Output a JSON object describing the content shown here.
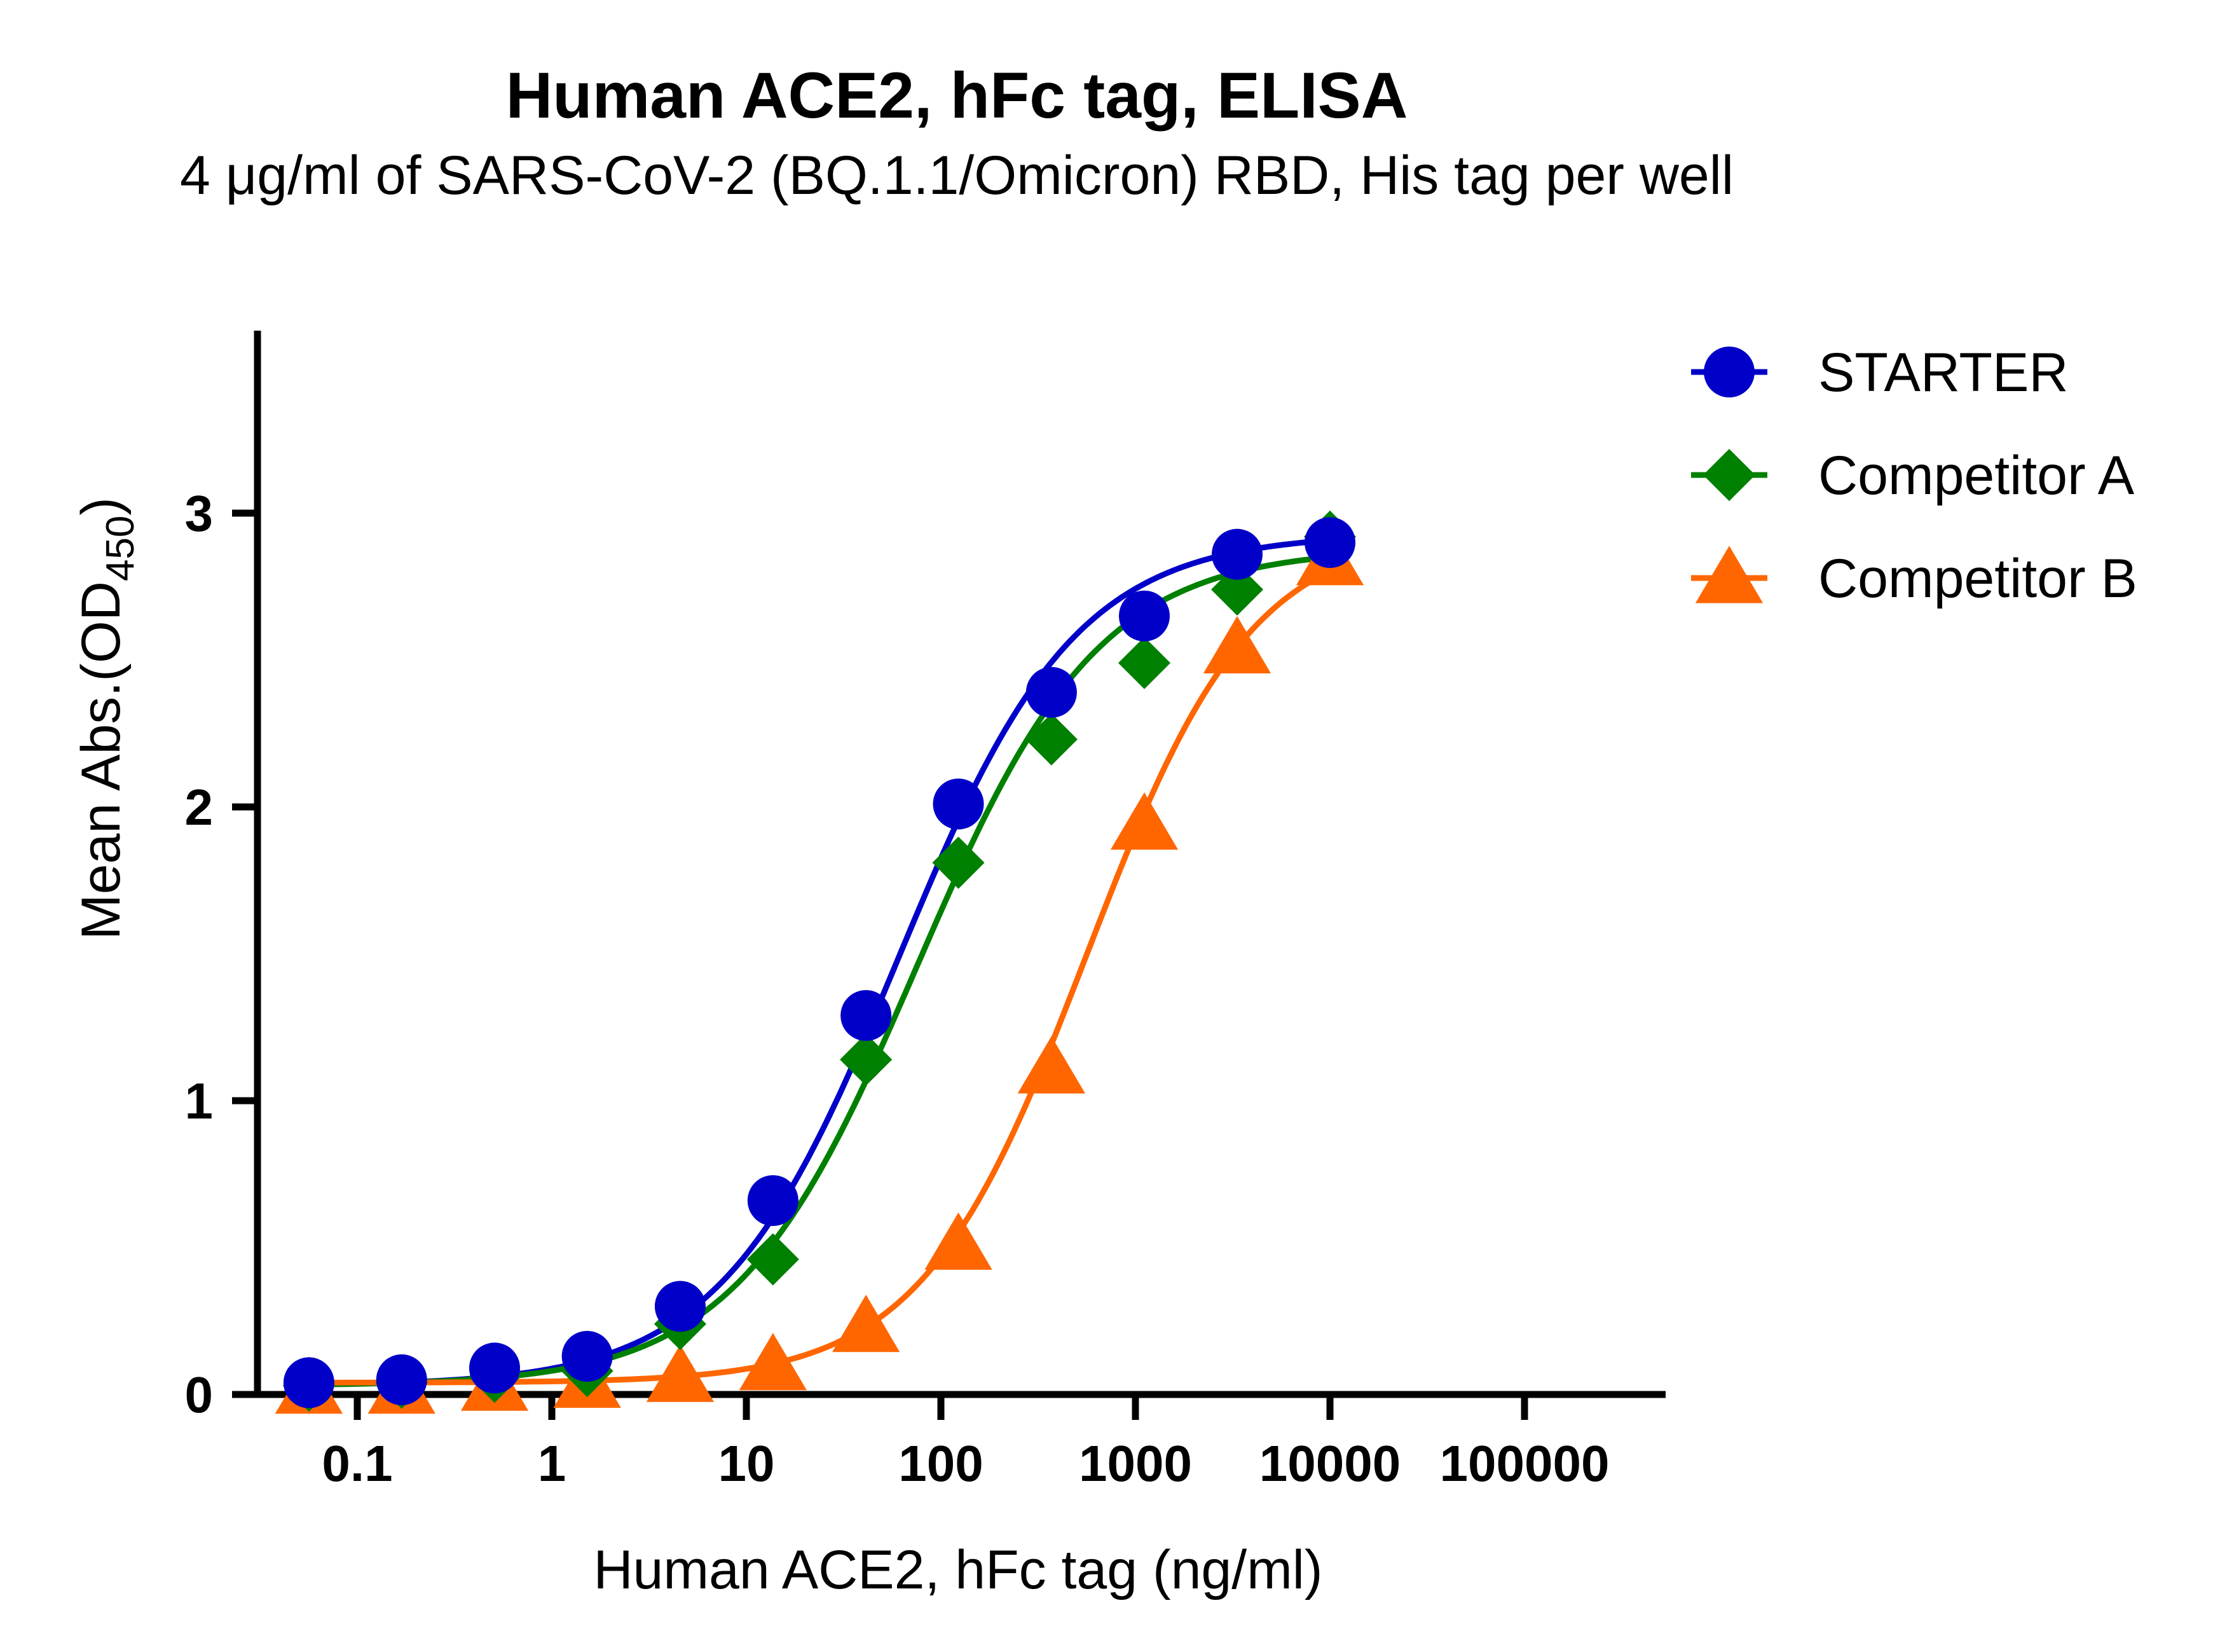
{
  "chart_data": {
    "type": "scatter",
    "title": "Human ACE2, hFc tag, ELISA",
    "subtitle": "4 μg/ml of SARS-CoV-2 (BQ.1.1/Omicron) RBD, His tag per well",
    "xlabel": "Human ACE2, hFc tag (ng/ml)",
    "ylabel": {
      "main": "Mean Abs.(OD",
      "subscript": "450",
      "close": ")"
    },
    "x_scale": "log10",
    "xlim": [
      0.02,
      400000
    ],
    "ylim": [
      0,
      3.55
    ],
    "x_ticks": [
      0.1,
      1,
      10,
      100,
      1000,
      10000,
      100000
    ],
    "x_tick_labels": [
      "0.1",
      "1",
      "10",
      "100",
      "1000",
      "10000",
      "100000"
    ],
    "y_ticks": [
      0,
      1,
      2,
      3
    ],
    "y_tick_labels": [
      "0",
      "1",
      "2",
      "3"
    ],
    "legend_position": "top-right",
    "series": [
      {
        "name": "STARTER",
        "color": "#0000c8",
        "marker": "circle",
        "x": [
          0.0564,
          0.169,
          0.508,
          1.52,
          4.57,
          13.7,
          41.2,
          123,
          370,
          1111,
          3333,
          10000
        ],
        "y": [
          0.04,
          0.05,
          0.09,
          0.13,
          0.3,
          0.66,
          1.29,
          2.01,
          2.39,
          2.65,
          2.86,
          2.9
        ],
        "fit": {
          "bottom": 0.03,
          "top": 2.93,
          "ec50": 60,
          "hill": 0.95
        }
      },
      {
        "name": "Competitor A",
        "color": "#008000",
        "marker": "diamond",
        "x": [
          0.0564,
          0.169,
          0.508,
          1.52,
          4.57,
          13.7,
          41.2,
          123,
          370,
          1111,
          3333,
          10000
        ],
        "y": [
          0.03,
          0.04,
          0.06,
          0.08,
          0.24,
          0.46,
          1.14,
          1.81,
          2.23,
          2.49,
          2.74,
          2.92
        ],
        "fit": {
          "bottom": 0.03,
          "top": 2.88,
          "ec50": 75,
          "hill": 0.93
        }
      },
      {
        "name": "Competitor B",
        "color": "#ff6600",
        "marker": "triangle",
        "x": [
          0.0564,
          0.169,
          0.508,
          1.52,
          4.57,
          13.7,
          41.2,
          123,
          370,
          1111,
          3333,
          10000
        ],
        "y": [
          0.02,
          0.02,
          0.03,
          0.04,
          0.06,
          0.1,
          0.23,
          0.51,
          1.11,
          1.94,
          2.54,
          2.84
        ],
        "fit": {
          "bottom": 0.04,
          "top": 2.95,
          "ec50": 560,
          "hill": 1.02
        }
      }
    ]
  }
}
